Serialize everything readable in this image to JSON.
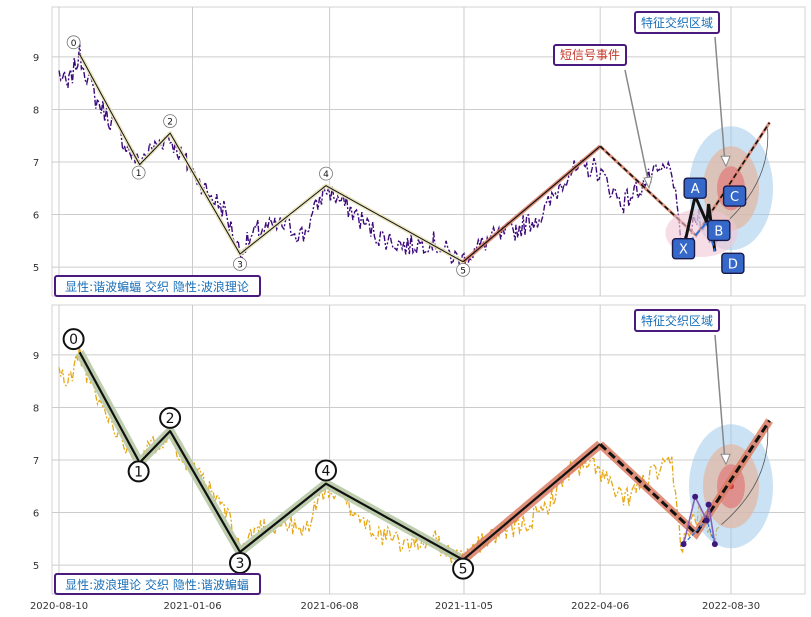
{
  "colors": {
    "grid": "#cccccc",
    "frame": "#d3d3d3",
    "price_top": "#3d0a7a",
    "price_bottom": "#e6a817",
    "wave_line": "#111111",
    "wave_glow": "#e8e2b8",
    "wave_glow_bottom": "#b7c9a6",
    "rise_glow": "#d97b63",
    "annot_border": "#4b1a7f",
    "annot_text_blue": "#1a6fb8",
    "annot_text_red": "#c0392b",
    "harmonic_point": "#3568c9",
    "harmonic_text": "#ffffff",
    "dashed_blue": "#2e6fd8",
    "ellipse_outer": "#9ecbea",
    "ellipse_mid": "#e0b8a6",
    "ellipse_inner": "#e07d7d",
    "ellipse_center": "#d93b3b"
  },
  "chart_data": [
    {
      "type": "line",
      "panel": "top",
      "x_ticks": [
        "2020-08-10",
        "2021-01-06",
        "2021-06-08",
        "2021-11-05",
        "2022-04-06",
        "2022-08-30"
      ],
      "ylim": [
        4.45,
        9.95
      ],
      "y_ticks": [
        5,
        6,
        7,
        8,
        9
      ],
      "grid": true,
      "price_series_color": "#3d0a7a",
      "price_anchor_points": [
        {
          "x": "2020-08-10",
          "y": 8.7
        },
        {
          "x": "2020-08-20",
          "y": 8.4
        },
        {
          "x": "2020-09-02",
          "y": 9.05
        },
        {
          "x": "2020-09-20",
          "y": 8.2
        },
        {
          "x": "2020-10-10",
          "y": 7.7
        },
        {
          "x": "2020-11-05",
          "y": 7.0
        },
        {
          "x": "2020-11-25",
          "y": 7.3
        },
        {
          "x": "2020-12-10",
          "y": 7.5
        },
        {
          "x": "2020-12-30",
          "y": 7.0
        },
        {
          "x": "2021-01-20",
          "y": 6.5
        },
        {
          "x": "2021-02-10",
          "y": 6.1
        },
        {
          "x": "2021-02-28",
          "y": 5.3
        },
        {
          "x": "2021-03-20",
          "y": 5.7
        },
        {
          "x": "2021-04-20",
          "y": 5.8
        },
        {
          "x": "2021-05-10",
          "y": 5.6
        },
        {
          "x": "2021-06-03",
          "y": 6.5
        },
        {
          "x": "2021-07-01",
          "y": 6.1
        },
        {
          "x": "2021-08-01",
          "y": 5.6
        },
        {
          "x": "2021-09-01",
          "y": 5.4
        },
        {
          "x": "2021-10-01",
          "y": 5.5
        },
        {
          "x": "2021-11-01",
          "y": 5.1
        },
        {
          "x": "2021-12-01",
          "y": 5.5
        },
        {
          "x": "2022-01-01",
          "y": 5.7
        },
        {
          "x": "2022-02-01",
          "y": 6.0
        },
        {
          "x": "2022-03-01",
          "y": 6.8
        },
        {
          "x": "2022-04-01",
          "y": 6.9
        },
        {
          "x": "2022-05-01",
          "y": 6.2
        },
        {
          "x": "2022-06-01",
          "y": 6.7
        },
        {
          "x": "2022-06-25",
          "y": 6.9
        },
        {
          "x": "2022-07-05",
          "y": 5.4
        },
        {
          "x": "2022-07-25",
          "y": 6.0
        },
        {
          "x": "2022-08-10",
          "y": 5.5
        },
        {
          "x": "2022-08-22",
          "y": 5.8
        }
      ],
      "wave_points": [
        {
          "label": "0",
          "x": "2020-09-02",
          "y": 9.05
        },
        {
          "label": "1",
          "x": "2020-11-08",
          "y": 6.95
        },
        {
          "label": "2",
          "x": "2020-12-12",
          "y": 7.55
        },
        {
          "label": "3",
          "x": "2021-02-28",
          "y": 5.25
        },
        {
          "label": "4",
          "x": "2021-06-04",
          "y": 6.55
        },
        {
          "label": "5",
          "x": "2021-11-04",
          "y": 5.1
        }
      ],
      "rise_points": [
        {
          "x": "2021-11-04",
          "y": 5.1
        },
        {
          "x": "2022-04-06",
          "y": 7.3
        },
        {
          "x": "2022-07-22",
          "y": 5.6
        },
        {
          "x": "2022-10-12",
          "y": 7.75
        }
      ],
      "harmonic_points": [
        {
          "label": "X",
          "x": "2022-07-08",
          "y": 5.35
        },
        {
          "label": "A",
          "x": "2022-07-21",
          "y": 6.35
        },
        {
          "label": "B",
          "x": "2022-08-03",
          "y": 5.85
        },
        {
          "label": "C",
          "x": "2022-08-05",
          "y": 6.2
        },
        {
          "label": "D",
          "x": "2022-08-12",
          "y": 5.3
        }
      ],
      "ellipse_center": {
        "x": "2022-08-30",
        "y": 6.5
      },
      "annotations": [
        "显性:谐波蝙蝠 交织 隐性:波浪理论",
        "短信号事件",
        "特征交织区域"
      ]
    },
    {
      "type": "line",
      "panel": "bottom",
      "x_ticks": [
        "2020-08-10",
        "2021-01-06",
        "2021-06-08",
        "2021-11-05",
        "2022-04-06",
        "2022-08-30"
      ],
      "ylim": [
        4.45,
        9.95
      ],
      "y_ticks": [
        5,
        6,
        7,
        8,
        9
      ],
      "grid": true,
      "price_series_color": "#e6a817",
      "wave_points": [
        {
          "label": "0",
          "x": "2020-09-02",
          "y": 9.05
        },
        {
          "label": "1",
          "x": "2020-11-08",
          "y": 6.95
        },
        {
          "label": "2",
          "x": "2020-12-12",
          "y": 7.55
        },
        {
          "label": "3",
          "x": "2021-02-28",
          "y": 5.25
        },
        {
          "label": "4",
          "x": "2021-06-04",
          "y": 6.55
        },
        {
          "label": "5",
          "x": "2021-11-04",
          "y": 5.1
        }
      ],
      "rise_points": [
        {
          "x": "2021-11-04",
          "y": 5.1
        },
        {
          "x": "2022-04-06",
          "y": 7.3
        },
        {
          "x": "2022-07-22",
          "y": 5.6
        },
        {
          "x": "2022-10-12",
          "y": 7.75
        }
      ],
      "harmonic_points": [
        {
          "x": "2022-07-08",
          "y": 5.4
        },
        {
          "x": "2022-07-21",
          "y": 6.3
        },
        {
          "x": "2022-08-03",
          "y": 5.85
        },
        {
          "x": "2022-08-05",
          "y": 6.15
        },
        {
          "x": "2022-08-12",
          "y": 5.4
        }
      ],
      "ellipse_center": {
        "x": "2022-08-30",
        "y": 6.5
      },
      "annotations": [
        "显性:波浪理论 交织 隐性:谐波蝙蝠",
        "特征交织区域"
      ]
    }
  ]
}
